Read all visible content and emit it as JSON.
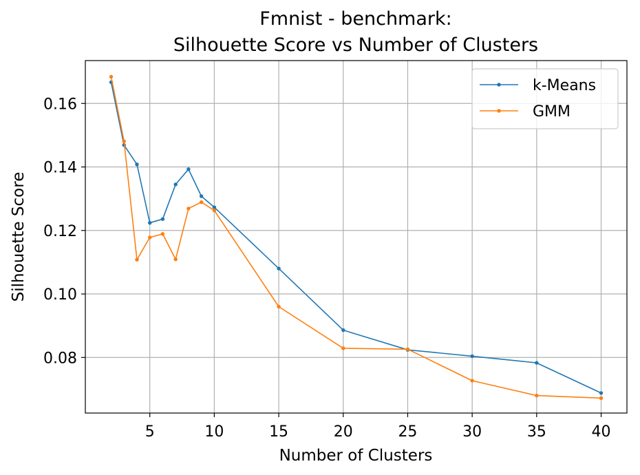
{
  "chart_data": {
    "type": "line",
    "title": "Fmnist - benchmark:",
    "subtitle": "Silhouette Score vs Number of Clusters",
    "xlabel": "Number of Clusters",
    "ylabel": "Silhouette Score",
    "xlim": [
      0,
      42
    ],
    "ylim": [
      0.0625,
      0.1735
    ],
    "xticks": [
      5,
      10,
      15,
      20,
      25,
      30,
      35,
      40
    ],
    "yticks": [
      0.08,
      0.1,
      0.12,
      0.14,
      0.16
    ],
    "ytick_labels": [
      "0.08",
      "0.10",
      "0.12",
      "0.14",
      "0.16"
    ],
    "grid": true,
    "legend_position": "top-right",
    "x": [
      2,
      3,
      4,
      5,
      6,
      7,
      8,
      9,
      10,
      15,
      20,
      25,
      30,
      35,
      40
    ],
    "series": [
      {
        "name": "k-Means",
        "color": "#1f77b4",
        "values": [
          0.1667,
          0.1469,
          0.1408,
          0.1224,
          0.1236,
          0.1345,
          0.1393,
          0.1308,
          0.1273,
          0.108,
          0.0886,
          0.0824,
          0.0804,
          0.0783,
          0.0688
        ]
      },
      {
        "name": "GMM",
        "color": "#ff7f0e",
        "values": [
          0.1684,
          0.1481,
          0.1108,
          0.1178,
          0.1189,
          0.1109,
          0.1269,
          0.1289,
          0.1263,
          0.096,
          0.0829,
          0.0826,
          0.0727,
          0.068,
          0.0672
        ]
      }
    ]
  }
}
